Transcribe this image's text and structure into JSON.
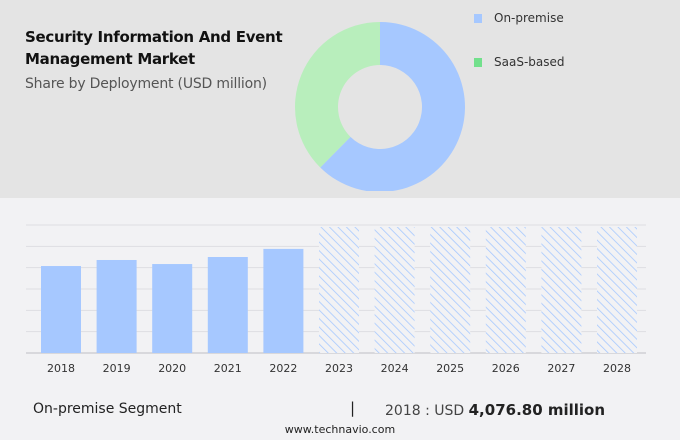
{
  "title_line1": "Security Information And Event",
  "title_line2": "Management Market",
  "subtitle": "Share by Deployment (USD million)",
  "legend": [
    {
      "label": "On-premise",
      "color": "#a6c8ff"
    },
    {
      "label": "SaaS-based",
      "color": "#72e08c"
    }
  ],
  "footer": {
    "segment": "On-premise Segment",
    "separator": "|",
    "value_prefix": "2018 : USD",
    "value": "4,076.80 million",
    "website": "www.technavio.com"
  },
  "chart_data": [
    {
      "type": "pie",
      "variant": "donut",
      "title": "Share by Deployment (USD million)",
      "labels": [
        "On-premise",
        "SaaS-based"
      ],
      "values": [
        62.4,
        37.6
      ],
      "colors": [
        "#a6c8ff",
        "#b8eebc"
      ],
      "legend_position": "top-right"
    },
    {
      "type": "bar",
      "categories": [
        "2018",
        "2019",
        "2020",
        "2021",
        "2022",
        "2023",
        "2024",
        "2025",
        "2026",
        "2027",
        "2028"
      ],
      "series": [
        {
          "name": "On-premise",
          "values": [
            4076.8,
            4360,
            4170,
            4500,
            4880,
            null,
            null,
            null,
            null,
            null,
            null
          ]
        }
      ],
      "forecast_categories": [
        "2023",
        "2024",
        "2025",
        "2026",
        "2027",
        "2028"
      ],
      "ylim": [
        0,
        6000
      ],
      "grid": true,
      "xlabel": "",
      "ylabel": ""
    }
  ]
}
